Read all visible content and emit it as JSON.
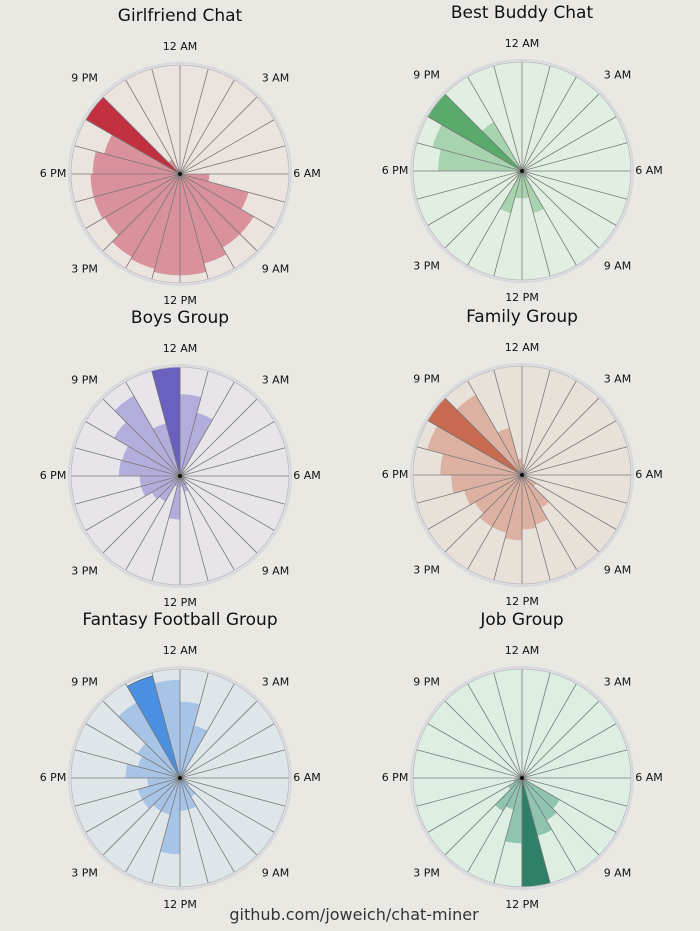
{
  "footer": "github.com/joweich/chat-miner",
  "chart_data": [
    {
      "type": "bar",
      "polar": true,
      "title": "Girlfriend Chat",
      "tick_labels": [
        "12 AM",
        "3 AM",
        "6 AM",
        "9 AM",
        "12 PM",
        "3 PM",
        "6 PM",
        "9 PM"
      ],
      "hours": [
        0,
        1,
        2,
        3,
        4,
        5,
        6,
        7,
        8,
        9,
        10,
        11,
        12,
        13,
        14,
        15,
        16,
        17,
        18,
        19,
        20,
        21,
        22,
        23
      ],
      "values": [
        0.02,
        0.02,
        0.02,
        0.02,
        0.02,
        0.03,
        0.27,
        0.65,
        0.78,
        0.78,
        0.85,
        0.93,
        0.93,
        0.9,
        0.88,
        0.8,
        0.82,
        0.82,
        0.8,
        0.72,
        1.0,
        0.15,
        0.05,
        0.02
      ],
      "colors": {
        "background": "#ebe3de",
        "bar": "#d9919b",
        "max": "#c2303f"
      }
    },
    {
      "type": "bar",
      "polar": true,
      "title": "Best Buddy Chat",
      "tick_labels": [
        "12 AM",
        "3 AM",
        "6 AM",
        "9 AM",
        "12 PM",
        "3 PM",
        "6 PM",
        "9 PM"
      ],
      "hours": [
        0,
        1,
        2,
        3,
        4,
        5,
        6,
        7,
        8,
        9,
        10,
        11,
        12,
        13,
        14,
        15,
        16,
        17,
        18,
        19,
        20,
        21,
        22,
        23
      ],
      "values": [
        0.02,
        0.02,
        0.02,
        0.02,
        0.02,
        0.02,
        0.03,
        0.05,
        0.05,
        0.08,
        0.4,
        0.25,
        0.25,
        0.4,
        0.08,
        0.05,
        0.05,
        0.05,
        0.77,
        0.85,
        1.0,
        0.52,
        0.05,
        0.02
      ],
      "colors": {
        "background": "#e1efe2",
        "bar": "#a7d3af",
        "max": "#5aaa6b"
      }
    },
    {
      "type": "bar",
      "polar": true,
      "title": "Boys Group",
      "tick_labels": [
        "12 AM",
        "3 AM",
        "6 AM",
        "9 AM",
        "12 PM",
        "3 PM",
        "6 PM",
        "9 PM"
      ],
      "hours": [
        0,
        1,
        2,
        3,
        4,
        5,
        6,
        7,
        8,
        9,
        10,
        11,
        12,
        13,
        14,
        15,
        16,
        17,
        18,
        19,
        20,
        21,
        22,
        23
      ],
      "values": [
        0.75,
        0.6,
        0.05,
        0.03,
        0.03,
        0.03,
        0.03,
        0.05,
        0.05,
        0.1,
        0.15,
        0.1,
        0.4,
        0.1,
        0.27,
        0.3,
        0.37,
        0.37,
        0.56,
        0.55,
        0.7,
        0.85,
        0.5,
        1.0
      ],
      "colors": {
        "background": "#e7e4ea",
        "bar": "#b3addb",
        "max": "#6a60c0"
      }
    },
    {
      "type": "bar",
      "polar": true,
      "title": "Family Group",
      "tick_labels": [
        "12 AM",
        "3 AM",
        "6 AM",
        "9 AM",
        "12 PM",
        "3 PM",
        "6 PM",
        "9 PM"
      ],
      "hours": [
        0,
        1,
        2,
        3,
        4,
        5,
        6,
        7,
        8,
        9,
        10,
        11,
        12,
        13,
        14,
        15,
        16,
        17,
        18,
        19,
        20,
        21,
        22,
        23
      ],
      "values": [
        0.1,
        0.03,
        0.02,
        0.02,
        0.02,
        0.02,
        0.03,
        0.05,
        0.15,
        0.35,
        0.47,
        0.5,
        0.6,
        0.55,
        0.55,
        0.5,
        0.55,
        0.65,
        0.75,
        0.9,
        1.0,
        0.85,
        0.45,
        0.15
      ],
      "colors": {
        "background": "#e7e1da",
        "bar": "#ddb1a1",
        "max": "#c76a4f"
      }
    },
    {
      "type": "bar",
      "polar": true,
      "title": "Fantasy Football Group",
      "tick_labels": [
        "12 AM",
        "3 AM",
        "6 AM",
        "9 AM",
        "12 PM",
        "3 PM",
        "6 PM",
        "9 PM"
      ],
      "hours": [
        0,
        1,
        2,
        3,
        4,
        5,
        6,
        7,
        8,
        9,
        10,
        11,
        12,
        13,
        14,
        15,
        16,
        17,
        18,
        19,
        20,
        21,
        22,
        23
      ],
      "values": [
        0.7,
        0.5,
        0.1,
        0.05,
        0.02,
        0.02,
        0.02,
        0.05,
        0.1,
        0.2,
        0.3,
        0.3,
        0.7,
        0.35,
        0.35,
        0.4,
        0.4,
        0.3,
        0.5,
        0.4,
        0.45,
        0.8,
        0.97,
        0.9
      ],
      "colors": {
        "background": "#dfe6ea",
        "bar": "#a7c4e6",
        "max": "#4a8fe0"
      }
    },
    {
      "type": "bar",
      "polar": true,
      "title": "Job Group",
      "tick_labels": [
        "12 AM",
        "3 AM",
        "6 AM",
        "9 AM",
        "12 PM",
        "3 PM",
        "6 PM",
        "9 PM"
      ],
      "hours": [
        0,
        1,
        2,
        3,
        4,
        5,
        6,
        7,
        8,
        9,
        10,
        11,
        12,
        13,
        14,
        15,
        16,
        17,
        18,
        19,
        20,
        21,
        22,
        23
      ],
      "values": [
        0.03,
        0.03,
        0.02,
        0.02,
        0.02,
        0.02,
        0.03,
        0.05,
        0.4,
        0.45,
        0.55,
        1.0,
        0.6,
        0.3,
        0.35,
        0.15,
        0.08,
        0.06,
        0.03,
        0.03,
        0.03,
        0.03,
        0.03,
        0.03
      ],
      "colors": {
        "background": "#ddefe2",
        "bar": "#8fc4b1",
        "max": "#2f8068"
      }
    }
  ]
}
